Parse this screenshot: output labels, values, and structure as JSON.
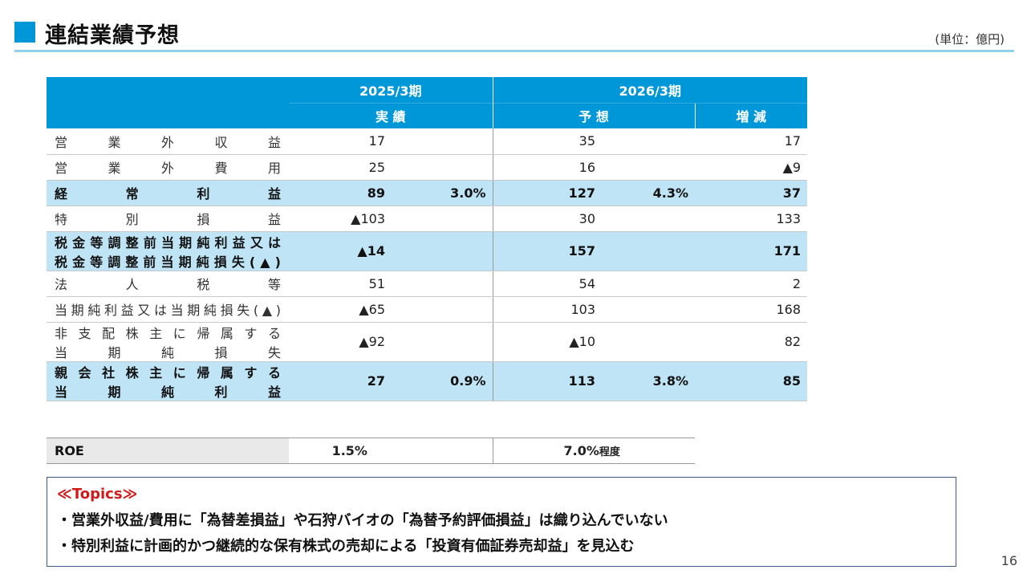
{
  "header": {
    "title": "連結業績予想",
    "unit": "(単位：億円)"
  },
  "table": {
    "periods": {
      "p1": "2025/3期",
      "p2": "2026/3期"
    },
    "subheads": {
      "actual": "実 績",
      "forecast": "予 想",
      "change": "増 減"
    },
    "rows": [
      {
        "label": [
          "営業外収益"
        ],
        "a": "17",
        "a_pct": "",
        "f": "35",
        "f_pct": "",
        "c": "17",
        "highlight": false
      },
      {
        "label": [
          "営業外費用"
        ],
        "a": "25",
        "a_pct": "",
        "f": "16",
        "f_pct": "",
        "c": "▲9",
        "highlight": false
      },
      {
        "label": [
          "経常利益"
        ],
        "a": "89",
        "a_pct": "3.0%",
        "f": "127",
        "f_pct": "4.3%",
        "c": "37",
        "highlight": true
      },
      {
        "label": [
          "特別損益"
        ],
        "a": "▲103",
        "a_pct": "",
        "f": "30",
        "f_pct": "",
        "c": "133",
        "highlight": false
      },
      {
        "label": [
          "税金等調整前当期純利益又は",
          "税金等調整前当期純損失(▲)"
        ],
        "a": "▲14",
        "a_pct": "",
        "f": "157",
        "f_pct": "",
        "c": "171",
        "highlight": true
      },
      {
        "label": [
          "法人税等"
        ],
        "a": "51",
        "a_pct": "",
        "f": "54",
        "f_pct": "",
        "c": "2",
        "highlight": false
      },
      {
        "label": [
          "当期純利益又は当期純損失(▲)"
        ],
        "a": "▲65",
        "a_pct": "",
        "f": "103",
        "f_pct": "",
        "c": "168",
        "highlight": false
      },
      {
        "label": [
          "非支配株主に帰属する",
          "当期純損失"
        ],
        "a": "▲92",
        "a_pct": "",
        "f": "▲10",
        "f_pct": "",
        "c": "82",
        "highlight": false
      },
      {
        "label": [
          "親会社株主に帰属する",
          "当期純利益"
        ],
        "a": "27",
        "a_pct": "0.9%",
        "f": "113",
        "f_pct": "3.8%",
        "c": "85",
        "highlight": true
      }
    ]
  },
  "roe": {
    "label": "ROE",
    "actual": "1.5%",
    "forecast": "7.0%",
    "forecast_suffix": "程度"
  },
  "topics": {
    "title": "≪Topics≫",
    "lines": [
      "・営業外収益/費用に「為替差損益」や石狩バイオの「為替予約評価損益」は織り込んでいない",
      "・特別利益に計画的かつ継続的な保有株式の売却による「投資有価証券売却益」を見込む"
    ]
  },
  "page_number": "16",
  "colors": {
    "accent": "#0097d9",
    "highlight_row": "#bfe4f6",
    "topics_title": "#d11a1a"
  }
}
